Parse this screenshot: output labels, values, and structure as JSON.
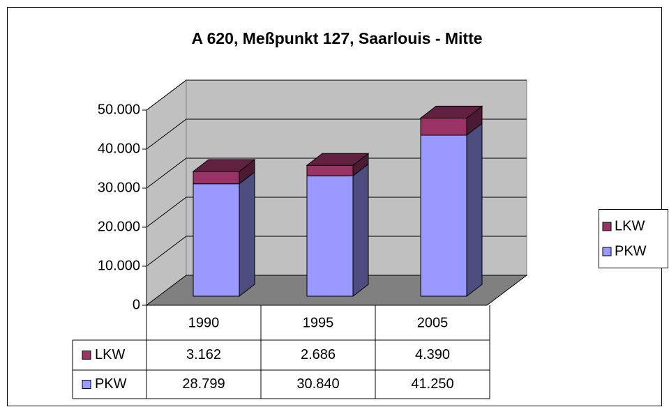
{
  "chart_data": {
    "type": "bar3d_stacked",
    "title": "A 620, Meßpunkt 127, Saarlouis - Mitte",
    "categories": [
      "1990",
      "1995",
      "2005"
    ],
    "series": [
      {
        "name": "PKW",
        "color": "#9999ff",
        "values": [
          28799,
          30840,
          41250
        ],
        "value_labels": [
          "28.799",
          "30.840",
          "41.250"
        ]
      },
      {
        "name": "LKW",
        "color": "#993366",
        "values": [
          3162,
          2686,
          4390
        ],
        "value_labels": [
          "3.162",
          "2.686",
          "4.390"
        ]
      }
    ],
    "ylim": [
      0,
      50000
    ],
    "yticks": [
      0,
      {
        "value": 10000,
        "label": "10.000"
      },
      {
        "value": 20000,
        "label": "20.000"
      },
      {
        "value": 30000,
        "label": "30.000"
      },
      {
        "value": 40000,
        "label": "40.000"
      },
      {
        "value": 50000,
        "label": "50.000"
      }
    ],
    "grid": true,
    "legend": "right",
    "data_table": true
  }
}
